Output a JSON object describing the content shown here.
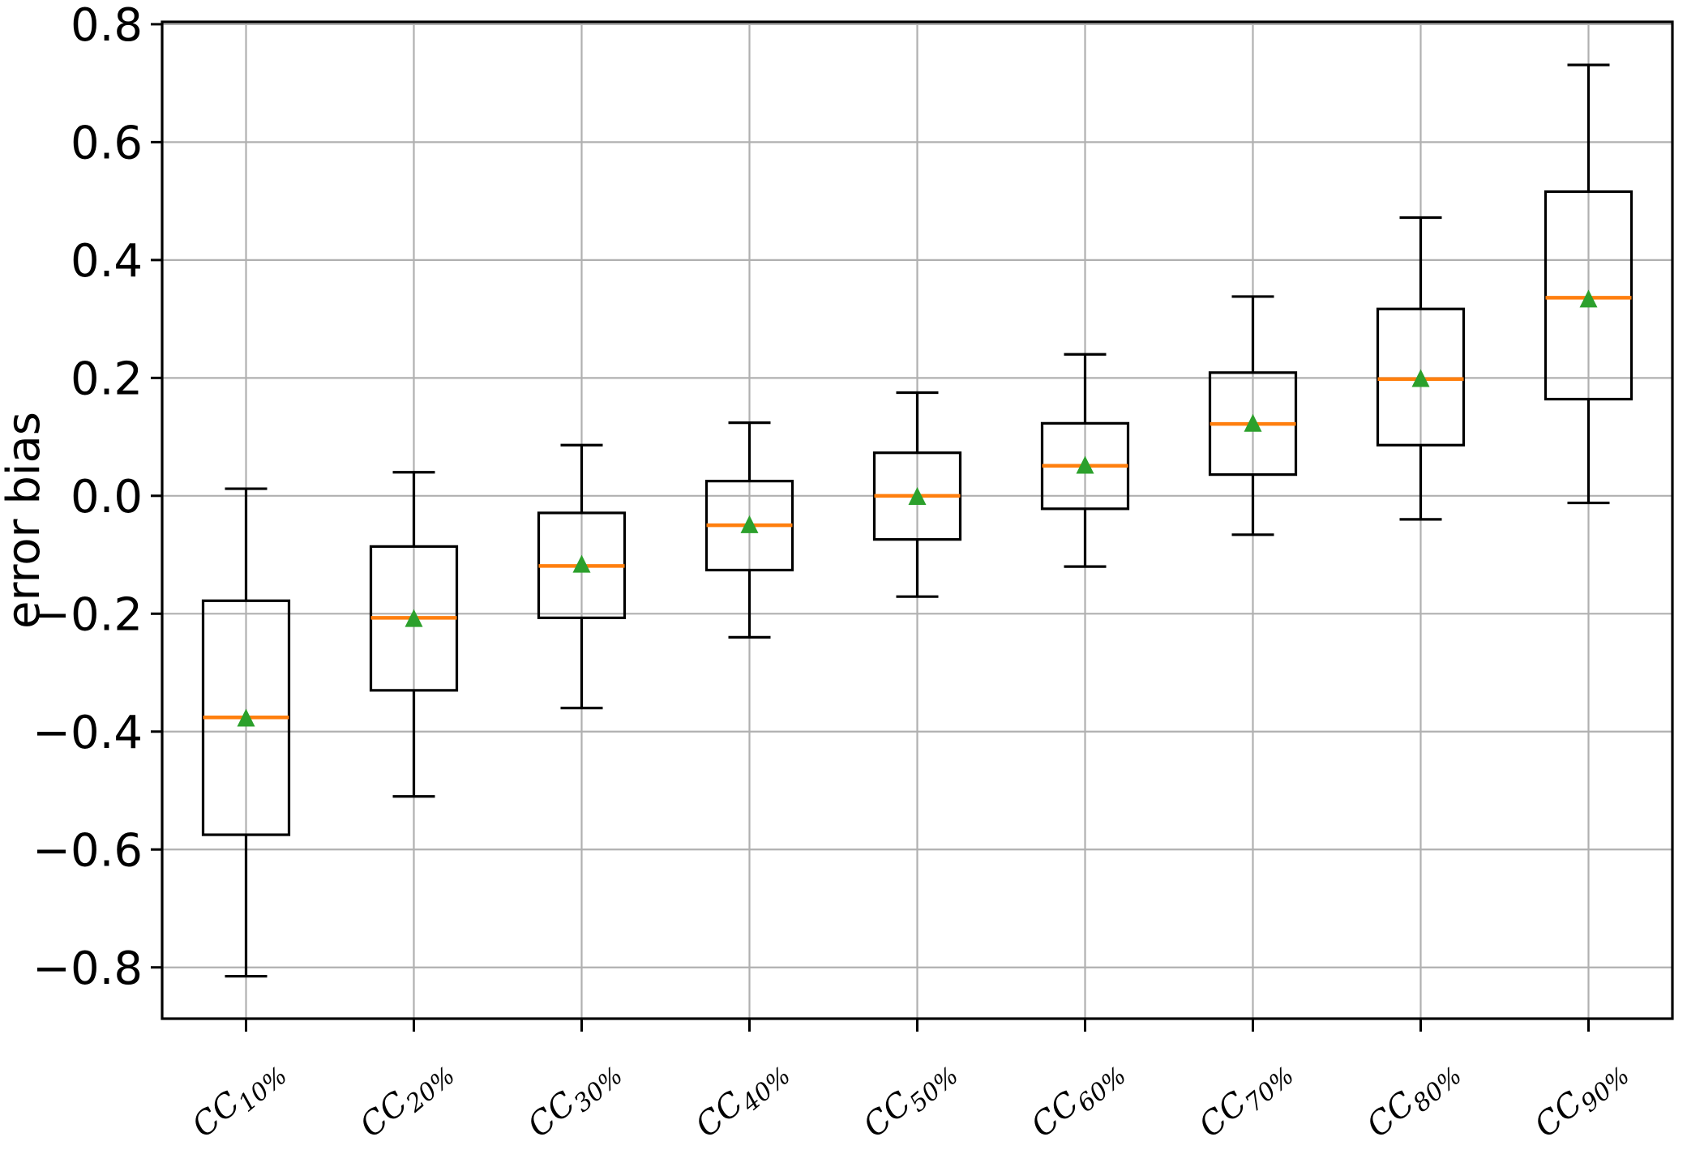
{
  "chart_data": {
    "type": "boxplot",
    "title": "",
    "xlabel": "",
    "ylabel": "error bias",
    "grid": true,
    "legend": null,
    "ylim": [
      -0.887,
      0.804
    ],
    "yticks": [
      0.8,
      0.6,
      0.4,
      0.2,
      0.0,
      -0.2,
      -0.4,
      -0.6,
      -0.8
    ],
    "categories": [
      {
        "base": "CC",
        "sub": "10%",
        "label": "CC10%"
      },
      {
        "base": "CC",
        "sub": "20%",
        "label": "CC20%"
      },
      {
        "base": "CC",
        "sub": "30%",
        "label": "CC30%"
      },
      {
        "base": "CC",
        "sub": "40%",
        "label": "CC40%"
      },
      {
        "base": "CC",
        "sub": "50%",
        "label": "CC50%"
      },
      {
        "base": "CC",
        "sub": "60%",
        "label": "CC60%"
      },
      {
        "base": "CC",
        "sub": "70%",
        "label": "CC70%"
      },
      {
        "base": "CC",
        "sub": "80%",
        "label": "CC80%"
      },
      {
        "base": "CC",
        "sub": "90%",
        "label": "CC90%"
      }
    ],
    "boxes": [
      {
        "label": "CC10%",
        "whislo": -0.815,
        "q1": -0.575,
        "med": -0.376,
        "mean": -0.379,
        "q3": -0.178,
        "whishi": 0.012
      },
      {
        "label": "CC20%",
        "whislo": -0.51,
        "q1": -0.33,
        "med": -0.207,
        "mean": -0.21,
        "q3": -0.086,
        "whishi": 0.04
      },
      {
        "label": "CC30%",
        "whislo": -0.36,
        "q1": -0.207,
        "med": -0.119,
        "mean": -0.118,
        "q3": -0.029,
        "whishi": 0.086
      },
      {
        "label": "CC40%",
        "whislo": -0.24,
        "q1": -0.126,
        "med": -0.05,
        "mean": -0.051,
        "q3": 0.025,
        "whishi": 0.124
      },
      {
        "label": "CC50%",
        "whislo": -0.171,
        "q1": -0.074,
        "med": 0.0,
        "mean": -0.003,
        "q3": 0.073,
        "whishi": 0.175
      },
      {
        "label": "CC60%",
        "whislo": -0.12,
        "q1": -0.022,
        "med": 0.051,
        "mean": 0.05,
        "q3": 0.123,
        "whishi": 0.24
      },
      {
        "label": "CC70%",
        "whislo": -0.066,
        "q1": 0.036,
        "med": 0.122,
        "mean": 0.121,
        "q3": 0.209,
        "whishi": 0.338
      },
      {
        "label": "CC80%",
        "whislo": -0.04,
        "q1": 0.086,
        "med": 0.198,
        "mean": 0.197,
        "q3": 0.317,
        "whishi": 0.472
      },
      {
        "label": "CC90%",
        "whislo": -0.012,
        "q1": 0.164,
        "med": 0.336,
        "mean": 0.332,
        "q3": 0.516,
        "whishi": 0.731
      }
    ],
    "colors": {
      "box": "#000000",
      "whisker": "#000000",
      "median": "#ff7f0e",
      "mean_marker": "#2ca02c",
      "grid": "#b0b0b0",
      "spine": "#000000",
      "text": "#000000",
      "background": "#ffffff"
    }
  }
}
